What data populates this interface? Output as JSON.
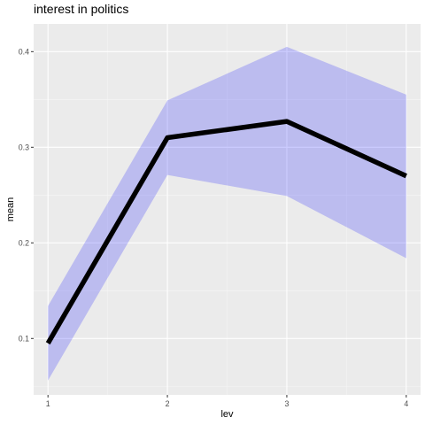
{
  "chart_data": {
    "type": "line",
    "title": "interest in politics",
    "xlabel": "lev",
    "ylabel": "mean",
    "x": [
      1,
      2,
      3,
      4
    ],
    "series": [
      {
        "values": [
          0.095,
          0.31,
          0.327,
          0.27
        ],
        "lower": [
          0.056,
          0.271,
          0.249,
          0.184
        ],
        "upper": [
          0.134,
          0.349,
          0.405,
          0.355
        ]
      }
    ],
    "xlim": [
      0.88,
      4.12
    ],
    "ylim": [
      0.041,
      0.429
    ],
    "xticks": [
      1,
      2,
      3,
      4
    ],
    "xtick_labels": [
      "1",
      "2",
      "3",
      "4"
    ],
    "yticks": [
      0.1,
      0.2,
      0.3,
      0.4
    ],
    "ytick_labels": [
      "0.1",
      "0.2",
      "0.3",
      "0.4"
    ],
    "grid": true,
    "colors": {
      "panel_background": "#ebebeb",
      "grid_major": "#ffffff",
      "grid_minor": "#f5f5f5",
      "ribbon_fill": "#0000ff",
      "line": "#000000",
      "tick_text": "#4d4d4d",
      "tick_mark": "#333333"
    }
  }
}
